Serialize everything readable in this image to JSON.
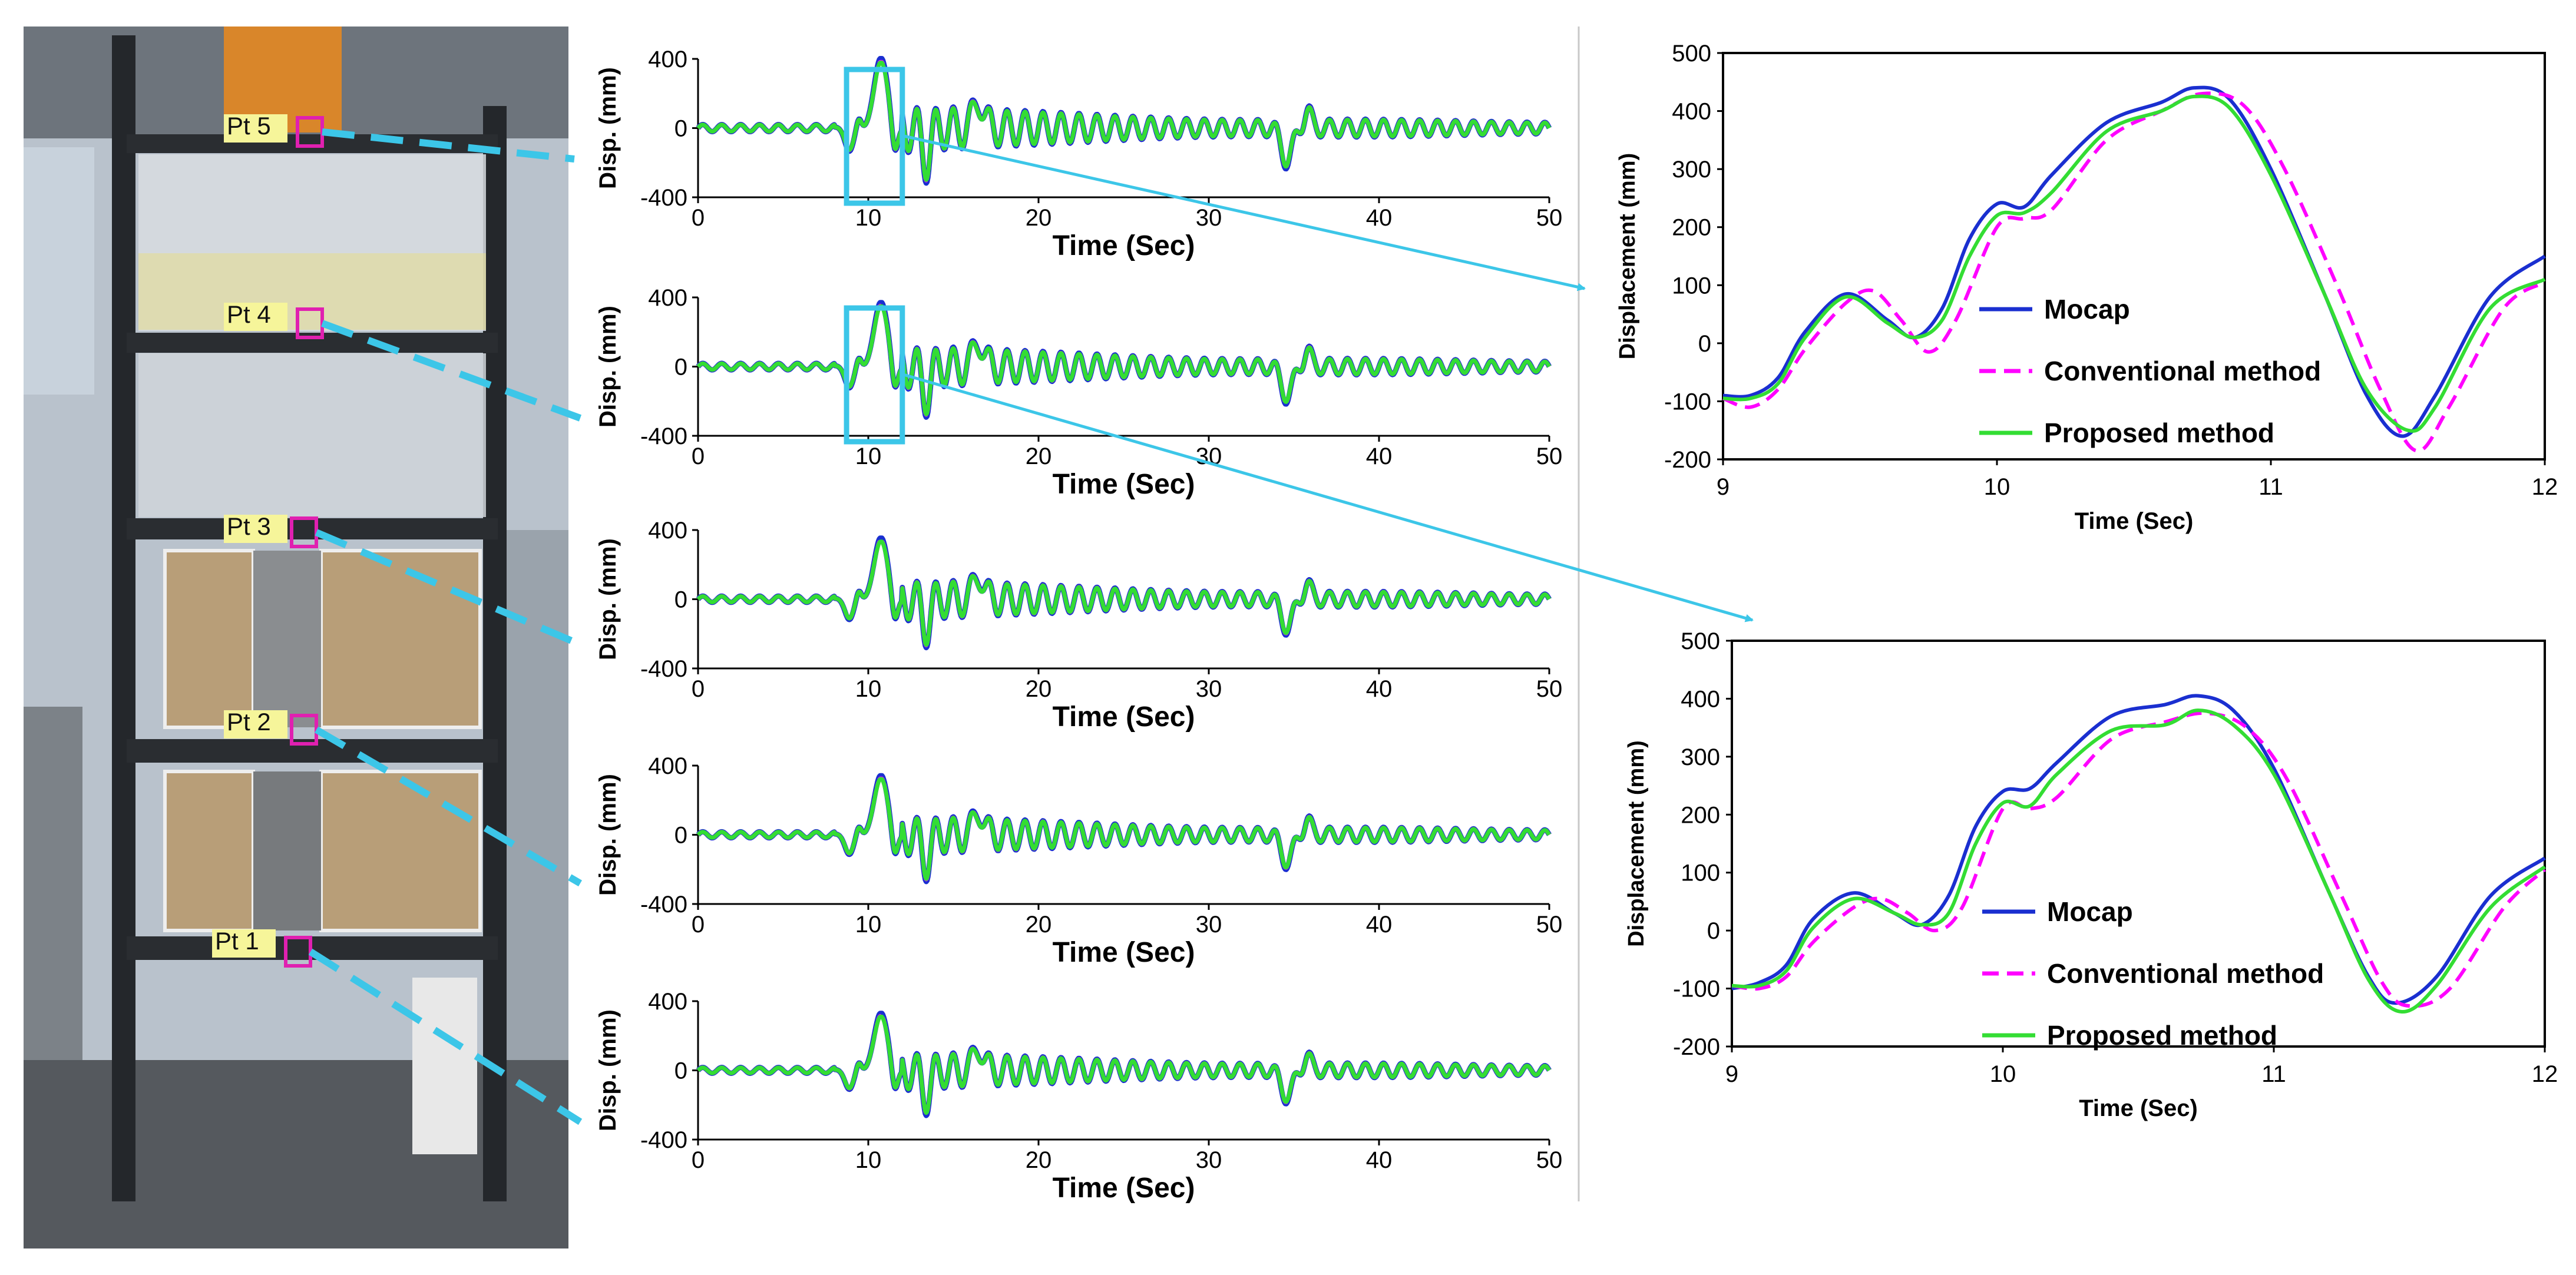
{
  "photo": {
    "point_labels": [
      "Pt 5",
      "Pt 4",
      "Pt 3",
      "Pt 2",
      "Pt 1"
    ],
    "colors": {
      "label_bg": "#f6f59a",
      "marker": "#e020b0",
      "leader": "#3cc6e8"
    }
  },
  "colors": {
    "mocap": "#1a2fd0",
    "conventional": "#ff00ff",
    "proposed": "#33dd33",
    "zoom_box": "#3cc6e8"
  },
  "chart_data": [
    {
      "id": "pt5",
      "type": "line",
      "point": "Pt 5",
      "xlabel": "Time (Sec)",
      "ylabel": "Disp. (mm)",
      "xlim": [
        0,
        50
      ],
      "ylim": [
        -400,
        400
      ],
      "xticks": [
        "0",
        "10",
        "20",
        "30",
        "40",
        "50"
      ],
      "yticks": [
        "400",
        "0",
        "-400"
      ],
      "series": [
        "Mocap",
        "Conventional method",
        "Proposed method"
      ],
      "scale": 1.0,
      "zoom_window": [
        9,
        12
      ]
    },
    {
      "id": "pt4",
      "type": "line",
      "point": "Pt 4",
      "xlabel": "Time (Sec)",
      "ylabel": "Disp. (mm)",
      "xlim": [
        0,
        50
      ],
      "ylim": [
        -400,
        400
      ],
      "xticks": [
        "0",
        "10",
        "20",
        "30",
        "40",
        "50"
      ],
      "yticks": [
        "400",
        "0",
        "-400"
      ],
      "series": [
        "Mocap",
        "Conventional method",
        "Proposed method"
      ],
      "scale": 0.92,
      "zoom_window": [
        9,
        12
      ]
    },
    {
      "id": "pt3",
      "type": "line",
      "point": "Pt 3",
      "xlabel": "Time (Sec)",
      "ylabel": "Disp. (mm)",
      "xlim": [
        0,
        50
      ],
      "ylim": [
        -400,
        400
      ],
      "xticks": [
        "0",
        "10",
        "20",
        "30",
        "40",
        "50"
      ],
      "yticks": [
        "400",
        "0",
        "-400"
      ],
      "series": [
        "Mocap",
        "Conventional method",
        "Proposed method"
      ],
      "scale": 0.88
    },
    {
      "id": "pt2",
      "type": "line",
      "point": "Pt 2",
      "xlabel": "Time (Sec)",
      "ylabel": "Disp. (mm)",
      "xlim": [
        0,
        50
      ],
      "ylim": [
        -400,
        400
      ],
      "xticks": [
        "0",
        "10",
        "20",
        "30",
        "40",
        "50"
      ],
      "yticks": [
        "400",
        "0",
        "-400"
      ],
      "series": [
        "Mocap",
        "Conventional method",
        "Proposed method"
      ],
      "scale": 0.85
    },
    {
      "id": "pt1",
      "type": "line",
      "point": "Pt 1",
      "xlabel": "Time (Sec)",
      "ylabel": "Disp. (mm)",
      "xlim": [
        0,
        50
      ],
      "ylim": [
        -400,
        400
      ],
      "xticks": [
        "0",
        "10",
        "20",
        "30",
        "40",
        "50"
      ],
      "yticks": [
        "400",
        "0",
        "-400"
      ],
      "series": [
        "Mocap",
        "Conventional method",
        "Proposed method"
      ],
      "scale": 0.82
    },
    {
      "id": "zoom-top",
      "type": "line",
      "xlabel": "Time (Sec)",
      "ylabel": "Displacement (mm)",
      "xlim": [
        9,
        12
      ],
      "ylim": [
        -200,
        500
      ],
      "xticks": [
        "9",
        "10",
        "11",
        "12"
      ],
      "yticks": [
        "500",
        "400",
        "300",
        "200",
        "100",
        "0",
        "-100",
        "-200"
      ],
      "legend": [
        "Mocap",
        "Conventional method",
        "Proposed method"
      ],
      "series": [
        {
          "name": "Mocap",
          "x": [
            9.0,
            9.1,
            9.2,
            9.3,
            9.45,
            9.6,
            9.7,
            9.8,
            9.9,
            10.0,
            10.1,
            10.2,
            10.4,
            10.6,
            10.72,
            10.85,
            11.0,
            11.2,
            11.35,
            11.48,
            11.6,
            11.8,
            12.0
          ],
          "values": [
            -90,
            -90,
            -60,
            20,
            85,
            40,
            10,
            60,
            180,
            240,
            235,
            290,
            380,
            415,
            440,
            420,
            300,
            80,
            -90,
            -160,
            -90,
            80,
            150
          ]
        },
        {
          "name": "Conventional method",
          "x": [
            9.0,
            9.1,
            9.2,
            9.3,
            9.45,
            9.55,
            9.65,
            9.75,
            9.85,
            10.0,
            10.1,
            10.2,
            10.4,
            10.6,
            10.75,
            10.9,
            11.05,
            11.25,
            11.4,
            11.53,
            11.65,
            11.85,
            12.0
          ],
          "values": [
            -95,
            -110,
            -80,
            -10,
            70,
            90,
            40,
            -15,
            40,
            200,
            215,
            230,
            350,
            400,
            430,
            410,
            300,
            90,
            -80,
            -185,
            -110,
            60,
            105
          ]
        },
        {
          "name": "Proposed method",
          "x": [
            9.0,
            9.1,
            9.2,
            9.3,
            9.45,
            9.6,
            9.7,
            9.8,
            9.9,
            10.0,
            10.1,
            10.2,
            10.4,
            10.6,
            10.72,
            10.85,
            11.0,
            11.2,
            11.35,
            11.5,
            11.6,
            11.8,
            12.0
          ],
          "values": [
            -95,
            -95,
            -70,
            10,
            80,
            35,
            10,
            40,
            150,
            220,
            225,
            260,
            365,
            400,
            425,
            405,
            290,
            80,
            -80,
            -150,
            -110,
            60,
            110
          ]
        }
      ]
    },
    {
      "id": "zoom-bottom",
      "type": "line",
      "xlabel": "Time (Sec)",
      "ylabel": "Displacement (mm)",
      "xlim": [
        9,
        12
      ],
      "ylim": [
        -200,
        500
      ],
      "xticks": [
        "9",
        "10",
        "11",
        "12"
      ],
      "yticks": [
        "500",
        "400",
        "300",
        "200",
        "100",
        "0",
        "-100",
        "-200"
      ],
      "legend": [
        "Mocap",
        "Conventional method",
        "Proposed method"
      ],
      "series": [
        {
          "name": "Mocap",
          "x": [
            9.0,
            9.1,
            9.2,
            9.3,
            9.45,
            9.6,
            9.7,
            9.8,
            9.9,
            10.0,
            10.1,
            10.2,
            10.4,
            10.6,
            10.72,
            10.85,
            11.0,
            11.2,
            11.35,
            11.45,
            11.6,
            11.8,
            12.0
          ],
          "values": [
            -100,
            -90,
            -60,
            20,
            65,
            30,
            10,
            60,
            180,
            240,
            245,
            290,
            370,
            390,
            405,
            380,
            280,
            70,
            -80,
            -125,
            -80,
            60,
            125
          ]
        },
        {
          "name": "Conventional method",
          "x": [
            9.0,
            9.1,
            9.2,
            9.3,
            9.45,
            9.55,
            9.65,
            9.75,
            9.85,
            10.0,
            10.1,
            10.2,
            10.4,
            10.6,
            10.75,
            10.9,
            11.05,
            11.25,
            11.4,
            11.5,
            11.65,
            11.85,
            12.0
          ],
          "values": [
            -95,
            -100,
            -80,
            -20,
            40,
            55,
            30,
            0,
            40,
            210,
            210,
            230,
            330,
            360,
            375,
            350,
            260,
            60,
            -90,
            -130,
            -100,
            40,
            105
          ]
        },
        {
          "name": "Proposed method",
          "x": [
            9.0,
            9.1,
            9.2,
            9.3,
            9.45,
            9.6,
            9.7,
            9.8,
            9.9,
            10.0,
            10.1,
            10.2,
            10.4,
            10.6,
            10.72,
            10.85,
            11.0,
            11.2,
            11.35,
            11.47,
            11.6,
            11.8,
            12.0
          ],
          "values": [
            -95,
            -95,
            -70,
            5,
            55,
            30,
            10,
            30,
            150,
            220,
            215,
            270,
            345,
            355,
            380,
            355,
            270,
            70,
            -85,
            -140,
            -95,
            40,
            110
          ]
        }
      ]
    }
  ]
}
